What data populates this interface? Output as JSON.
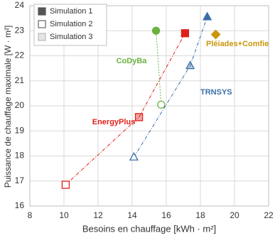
{
  "chart_data": {
    "type": "scatter",
    "xlabel": "Besoins en chauffage  [kWh · m²]",
    "ylabel": "Puissance de chauffage maximale [W · m²]",
    "xlim": [
      8,
      22
    ],
    "xticks": [
      8,
      10,
      12,
      14,
      16,
      18,
      20,
      22
    ],
    "ylim": [
      16,
      24
    ],
    "yticks": [
      16,
      17,
      18,
      19,
      20,
      21,
      22,
      23,
      24
    ],
    "grid": true,
    "legend": [
      "Simulation 1",
      "Simulation 2",
      "Simulation 3"
    ],
    "legend_position": "upper left",
    "series": [
      {
        "name": "EnergyPlus",
        "color": "#e0201b",
        "marker": "square",
        "x": [
          17.1,
          10.1,
          14.4
        ],
        "values": [
          22.9,
          16.85,
          19.55
        ]
      },
      {
        "name": "CoDyBa",
        "color": "#6ab23e",
        "marker": "circle",
        "x": [
          15.4,
          15.7,
          null
        ],
        "values": [
          23.0,
          20.05,
          null
        ]
      },
      {
        "name": "TRNSYS",
        "color": "#3b6fa8",
        "marker": "triangle",
        "x": [
          18.4,
          14.1,
          17.4
        ],
        "values": [
          23.55,
          17.95,
          21.6
        ]
      },
      {
        "name": "Pléiades+Comfie",
        "color": "#c9960c",
        "marker": "diamond",
        "x": [
          18.9,
          null,
          null
        ],
        "values": [
          22.85,
          null,
          null
        ]
      }
    ]
  }
}
